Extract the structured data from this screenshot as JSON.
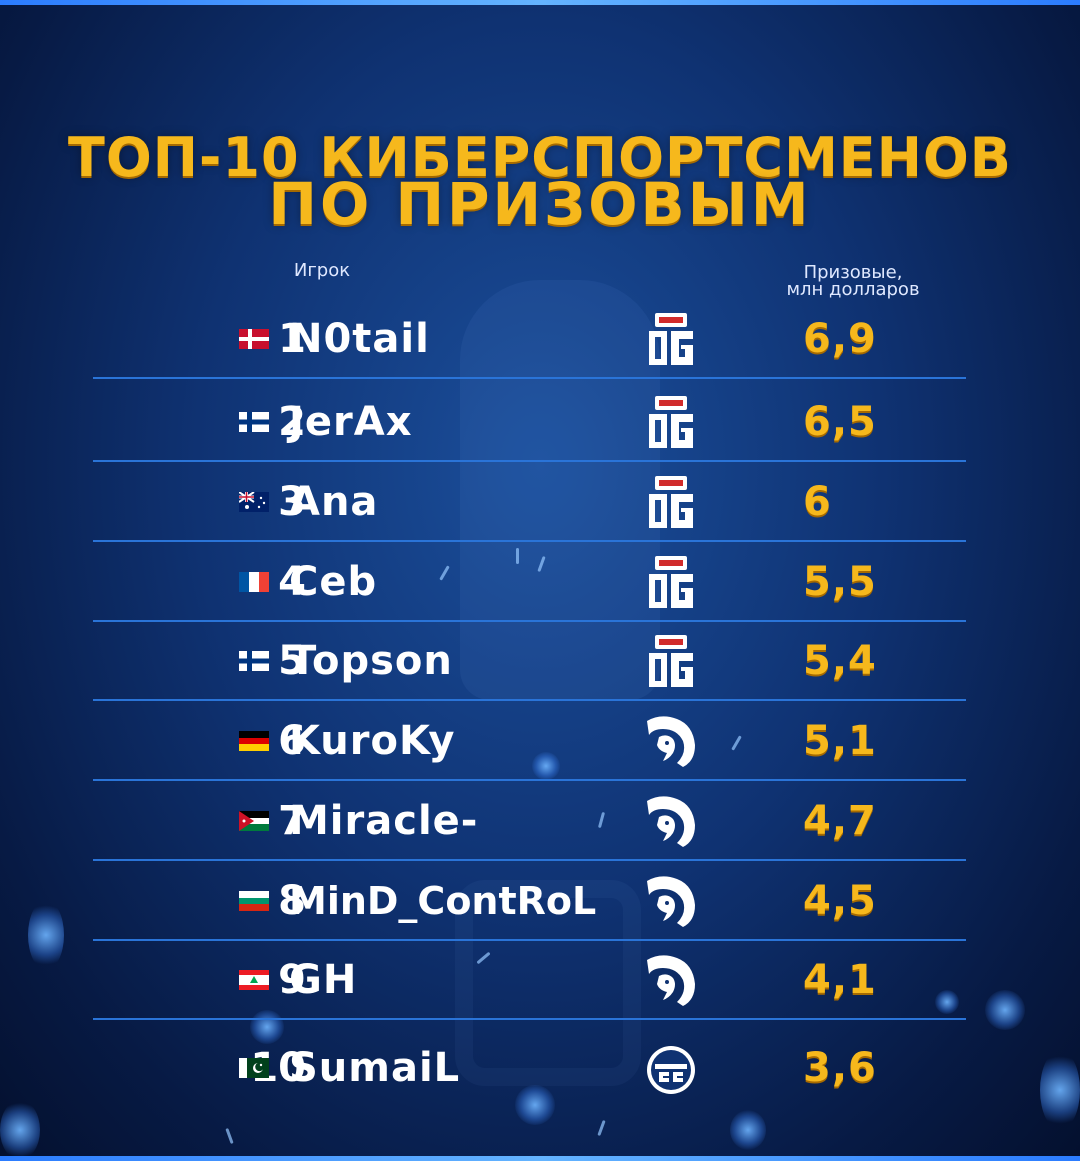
{
  "title_line1": "ТОП-10 КИБЕРСПОРТСМЕНОВ",
  "title_line2": "ПО ПРИЗОВЫМ",
  "header_player": "Игрок",
  "header_prize_line1": "Призовые,",
  "header_prize_line2": "млн долларов",
  "colors": {
    "accent_gold": "#f6b81c",
    "divider_blue": "#2a74d8",
    "background_blue": "#0f3272"
  },
  "players": [
    {
      "rank": "1",
      "flag": "denmark-flag-icon",
      "name": "N0tail",
      "team": "og-logo-icon",
      "prize": "6,9"
    },
    {
      "rank": "2",
      "flag": "finland-flag-icon",
      "name": "JerAx",
      "team": "og-logo-icon",
      "prize": "6,5"
    },
    {
      "rank": "3",
      "flag": "australia-flag-icon",
      "name": "Ana",
      "team": "og-logo-icon",
      "prize": "6"
    },
    {
      "rank": "4",
      "flag": "france-flag-icon",
      "name": "Ceb",
      "team": "og-logo-icon",
      "prize": "5,5"
    },
    {
      "rank": "5",
      "flag": "finland-flag-icon",
      "name": "Topson",
      "team": "og-logo-icon",
      "prize": "5,4"
    },
    {
      "rank": "6",
      "flag": "germany-flag-icon",
      "name": "KuroKy",
      "team": "team-liquid-logo-icon",
      "prize": "5,1"
    },
    {
      "rank": "7",
      "flag": "jordan-flag-icon",
      "name": "Miracle-",
      "team": "team-liquid-logo-icon",
      "prize": "4,7"
    },
    {
      "rank": "8",
      "flag": "bulgaria-flag-icon",
      "name": "MinD_ContRoL",
      "team": "team-liquid-logo-icon",
      "prize": "4,5"
    },
    {
      "rank": "9",
      "flag": "lebanon-flag-icon",
      "name": "GH",
      "team": "team-liquid-logo-icon",
      "prize": "4,1"
    },
    {
      "rank": "10",
      "flag": "pakistan-flag-icon",
      "name": "SumaiL",
      "team": "evil-geniuses-logo-icon",
      "prize": "3,6"
    }
  ]
}
